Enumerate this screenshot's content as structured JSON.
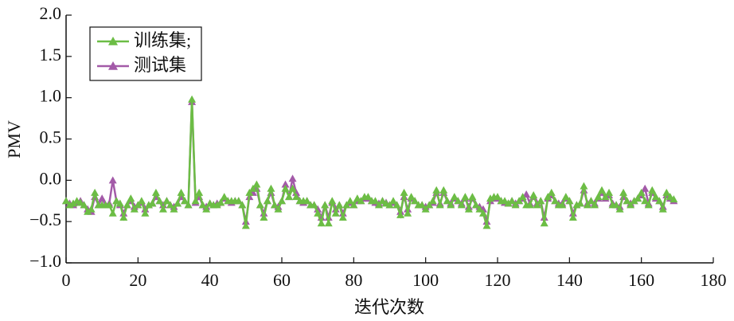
{
  "chart_data": {
    "type": "line",
    "xlabel": "迭代次数",
    "ylabel": "PMV",
    "x": [
      0,
      1,
      2,
      3,
      4,
      5,
      6,
      7,
      8,
      9,
      10,
      11,
      12,
      13,
      14,
      15,
      16,
      17,
      18,
      19,
      20,
      21,
      22,
      23,
      24,
      25,
      26,
      27,
      28,
      29,
      30,
      31,
      32,
      33,
      34,
      35,
      36,
      37,
      38,
      39,
      40,
      41,
      42,
      43,
      44,
      45,
      46,
      47,
      48,
      49,
      50,
      51,
      52,
      53,
      54,
      55,
      56,
      57,
      58,
      59,
      60,
      61,
      62,
      63,
      64,
      65,
      66,
      67,
      68,
      69,
      70,
      71,
      72,
      73,
      74,
      75,
      76,
      77,
      78,
      79,
      80,
      81,
      82,
      83,
      84,
      85,
      86,
      87,
      88,
      89,
      90,
      91,
      92,
      93,
      94,
      95,
      96,
      97,
      98,
      99,
      100,
      101,
      102,
      103,
      104,
      105,
      106,
      107,
      108,
      109,
      110,
      111,
      112,
      113,
      114,
      115,
      116,
      117,
      118,
      119,
      120,
      121,
      122,
      123,
      124,
      125,
      126,
      127,
      128,
      129,
      130,
      131,
      132,
      133,
      134,
      135,
      136,
      137,
      138,
      139,
      140,
      141,
      142,
      143,
      144,
      145,
      146,
      147,
      148,
      149,
      150,
      151,
      152,
      153,
      154,
      155,
      156,
      157,
      158,
      159,
      160,
      161,
      162,
      163,
      164,
      165,
      166,
      167,
      168,
      169
    ],
    "series": [
      {
        "name": "训练集;",
        "color": "#6cbd45",
        "values": [
          -0.25,
          -0.3,
          -0.28,
          -0.25,
          -0.27,
          -0.3,
          -0.38,
          -0.35,
          -0.15,
          -0.3,
          -0.3,
          -0.3,
          -0.3,
          -0.4,
          -0.25,
          -0.28,
          -0.45,
          -0.3,
          -0.22,
          -0.35,
          -0.3,
          -0.25,
          -0.4,
          -0.3,
          -0.28,
          -0.15,
          -0.25,
          -0.35,
          -0.25,
          -0.3,
          -0.35,
          -0.28,
          -0.15,
          -0.25,
          -0.3,
          0.98,
          -0.25,
          -0.15,
          -0.3,
          -0.35,
          -0.28,
          -0.3,
          -0.3,
          -0.27,
          -0.2,
          -0.25,
          -0.25,
          -0.25,
          -0.25,
          -0.3,
          -0.55,
          -0.15,
          -0.1,
          -0.05,
          -0.3,
          -0.45,
          -0.25,
          -0.1,
          -0.3,
          -0.35,
          -0.25,
          -0.1,
          -0.2,
          -0.1,
          -0.2,
          -0.25,
          -0.25,
          -0.25,
          -0.3,
          -0.3,
          -0.4,
          -0.52,
          -0.3,
          -0.52,
          -0.25,
          -0.4,
          -0.3,
          -0.45,
          -0.3,
          -0.25,
          -0.3,
          -0.22,
          -0.25,
          -0.2,
          -0.2,
          -0.25,
          -0.25,
          -0.3,
          -0.25,
          -0.28,
          -0.3,
          -0.25,
          -0.3,
          -0.42,
          -0.15,
          -0.4,
          -0.2,
          -0.25,
          -0.3,
          -0.3,
          -0.35,
          -0.3,
          -0.25,
          -0.12,
          -0.3,
          -0.12,
          -0.25,
          -0.3,
          -0.2,
          -0.25,
          -0.3,
          -0.2,
          -0.35,
          -0.2,
          -0.3,
          -0.35,
          -0.4,
          -0.55,
          -0.22,
          -0.2,
          -0.2,
          -0.25,
          -0.25,
          -0.28,
          -0.25,
          -0.3,
          -0.25,
          -0.2,
          -0.3,
          -0.3,
          -0.18,
          -0.3,
          -0.25,
          -0.52,
          -0.2,
          -0.15,
          -0.25,
          -0.3,
          -0.3,
          -0.2,
          -0.25,
          -0.45,
          -0.3,
          -0.28,
          -0.07,
          -0.3,
          -0.25,
          -0.3,
          -0.2,
          -0.12,
          -0.2,
          -0.15,
          -0.3,
          -0.3,
          -0.35,
          -0.15,
          -0.25,
          -0.3,
          -0.25,
          -0.22,
          -0.15,
          -0.25,
          -0.3,
          -0.12,
          -0.2,
          -0.25,
          -0.35,
          -0.15,
          -0.2,
          -0.23
        ]
      },
      {
        "name": "测试集",
        "color": "#a35aa8",
        "values": [
          -0.25,
          -0.28,
          -0.3,
          -0.27,
          -0.25,
          -0.3,
          -0.35,
          -0.38,
          -0.2,
          -0.3,
          -0.22,
          -0.3,
          -0.28,
          0.0,
          -0.25,
          -0.3,
          -0.4,
          -0.3,
          -0.25,
          -0.32,
          -0.3,
          -0.27,
          -0.35,
          -0.3,
          -0.28,
          -0.2,
          -0.25,
          -0.3,
          -0.25,
          -0.3,
          -0.32,
          -0.28,
          -0.2,
          -0.25,
          -0.3,
          0.95,
          -0.27,
          -0.2,
          -0.3,
          -0.32,
          -0.28,
          -0.3,
          -0.28,
          -0.27,
          -0.22,
          -0.25,
          -0.27,
          -0.25,
          -0.25,
          -0.3,
          -0.5,
          -0.2,
          -0.15,
          -0.1,
          -0.3,
          -0.4,
          -0.25,
          -0.15,
          -0.3,
          -0.32,
          -0.25,
          -0.05,
          -0.2,
          0.02,
          -0.15,
          -0.25,
          -0.27,
          -0.25,
          -0.3,
          -0.3,
          -0.35,
          -0.45,
          -0.3,
          -0.45,
          -0.27,
          -0.35,
          -0.3,
          -0.4,
          -0.3,
          -0.27,
          -0.3,
          -0.25,
          -0.25,
          -0.22,
          -0.22,
          -0.25,
          -0.27,
          -0.28,
          -0.25,
          -0.27,
          -0.3,
          -0.27,
          -0.3,
          -0.38,
          -0.2,
          -0.35,
          -0.22,
          -0.25,
          -0.3,
          -0.3,
          -0.32,
          -0.3,
          -0.27,
          -0.15,
          -0.28,
          -0.15,
          -0.25,
          -0.28,
          -0.22,
          -0.25,
          -0.28,
          -0.22,
          -0.32,
          -0.22,
          -0.3,
          -0.32,
          -0.35,
          -0.5,
          -0.25,
          -0.22,
          -0.22,
          -0.25,
          -0.27,
          -0.28,
          -0.25,
          -0.28,
          -0.25,
          -0.22,
          -0.17,
          -0.28,
          -0.2,
          -0.28,
          -0.25,
          -0.45,
          -0.22,
          -0.18,
          -0.25,
          -0.28,
          -0.28,
          -0.22,
          -0.25,
          -0.4,
          -0.3,
          -0.28,
          -0.12,
          -0.28,
          -0.25,
          -0.28,
          -0.22,
          -0.15,
          -0.22,
          -0.18,
          -0.28,
          -0.3,
          -0.32,
          -0.2,
          -0.25,
          -0.28,
          -0.25,
          -0.22,
          -0.18,
          -0.1,
          -0.28,
          -0.15,
          -0.22,
          -0.25,
          -0.32,
          -0.18,
          -0.22,
          -0.25
        ]
      }
    ],
    "xlim": [
      0,
      180
    ],
    "xticks": [
      0,
      20,
      40,
      60,
      80,
      100,
      120,
      140,
      160,
      180
    ],
    "ylim": [
      -1,
      2
    ],
    "yticks": [
      {
        "value": -1,
        "label": "−1.0"
      },
      {
        "value": -0.5,
        "label": "−0.5"
      },
      {
        "value": 0,
        "label": "0.0"
      },
      0.5,
      {
        "value": 1,
        "label": "1.0"
      },
      1.5,
      {
        "value": 2,
        "label": "2.0"
      }
    ],
    "legend": "upper left"
  }
}
